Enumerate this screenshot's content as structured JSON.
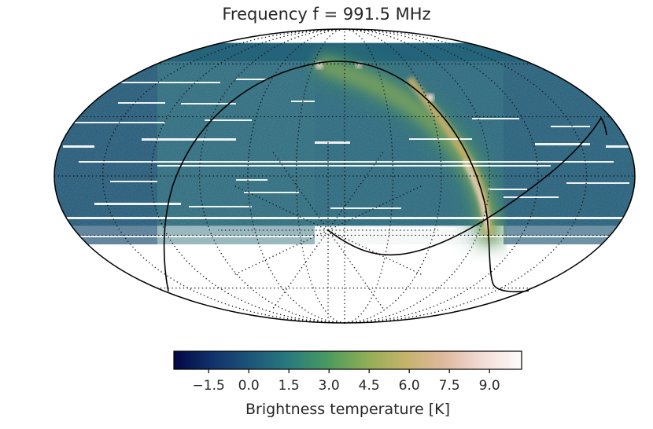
{
  "chart_data": {
    "type": "heatmap",
    "title": "Frequency f = 991.5 MHz",
    "projection": "mollweide",
    "colormap": [
      "#020744",
      "#12316b",
      "#1d567a",
      "#2a7b7e",
      "#4b9a5f",
      "#8fae55",
      "#c7b36b",
      "#dfb99f",
      "#f3dcd6",
      "#fefcfc"
    ],
    "colorbar": {
      "label": "Brightness temperature [K]",
      "range": [
        -2.8,
        10.2
      ],
      "ticks": [
        -1.5,
        0.0,
        1.5,
        3.0,
        4.5,
        6.0,
        7.5,
        9.0
      ],
      "tick_labels": [
        "−1.5",
        "0.0",
        "1.5",
        "3.0",
        "4.5",
        "6.0",
        "7.5",
        "9.0"
      ]
    },
    "coverage_lat_range_deg": [
      -25,
      75
    ],
    "background_level_K": 0.0,
    "galactic_plane_peak_K": 10.0,
    "grid": true,
    "grid_style": "dotted"
  }
}
